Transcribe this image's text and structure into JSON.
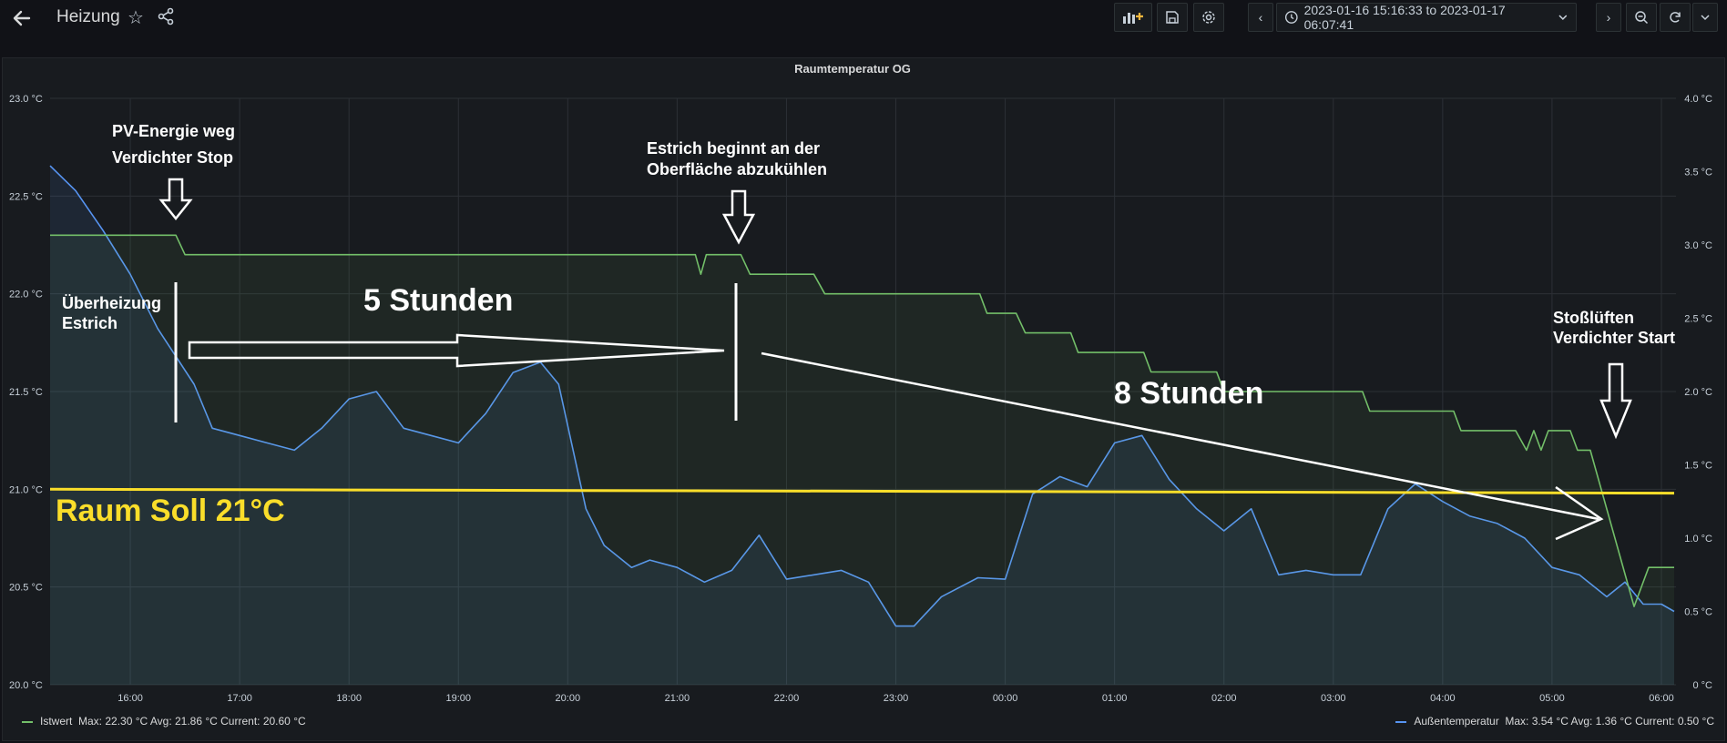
{
  "header": {
    "title": "Heizung",
    "time_range": "2023-01-16 15:16:33 to 2023-01-17 06:07:41"
  },
  "panel": {
    "title": "Raumtemperatur OG"
  },
  "colors": {
    "istwert": "#73bf69",
    "aussen": "#5794f2",
    "soll": "#fade2a",
    "annotation": "#ffffff",
    "background": "#181b1f"
  },
  "legend": {
    "left": {
      "name": "Istwert",
      "stats": "Max: 22.30 °C   Avg: 21.86 °C   Current: 20.60 °C"
    },
    "right": {
      "name": "Außentemperatur",
      "stats": "Max: 3.54 °C   Avg: 1.36 °C   Current: 0.50 °C"
    }
  },
  "annotations": {
    "pv_line1": "PV-Energie weg",
    "pv_line2": "Verdichter Stop",
    "estrich_line1": "Estrich beginnt an der",
    "estrich_line2": "Oberfläche abzukühlen",
    "ueber_line1": "Überheizung",
    "ueber_line2": "Estrich",
    "five_hours": "5 Stunden",
    "eight_hours": "8 Stunden",
    "stoss_line1": "Stoßlüften",
    "stoss_line2": "Verdichter Start",
    "soll": "Raum Soll 21°C"
  },
  "chart_data": {
    "type": "line",
    "title": "Raumtemperatur OG",
    "x_ticks": [
      "16:00",
      "17:00",
      "18:00",
      "19:00",
      "20:00",
      "21:00",
      "22:00",
      "23:00",
      "00:00",
      "01:00",
      "02:00",
      "03:00",
      "04:00",
      "05:00",
      "06:00"
    ],
    "x_range": [
      "15:16",
      "06:08"
    ],
    "y_left": {
      "label": "",
      "unit": "°C",
      "range": [
        20.0,
        23.0
      ],
      "ticks": [
        "20.0 °C",
        "20.5 °C",
        "21.0 °C",
        "21.5 °C",
        "22.0 °C",
        "22.5 °C",
        "23.0 °C"
      ]
    },
    "y_right": {
      "label": "",
      "unit": "°C",
      "range": [
        0,
        4.0
      ],
      "ticks": [
        "0 °C",
        "0.5 °C",
        "1.0 °C",
        "1.5 °C",
        "2.0 °C",
        "2.5 °C",
        "3.0 °C",
        "3.5 °C",
        "4.0 °C"
      ]
    },
    "grid": true,
    "legend_position": "bottom",
    "series": [
      {
        "name": "Istwert",
        "axis": "left",
        "values": [
          [
            "15:16",
            22.3
          ],
          [
            "16:25",
            22.3
          ],
          [
            "16:30",
            22.2
          ],
          [
            "21:10",
            22.2
          ],
          [
            "21:13",
            22.1
          ],
          [
            "21:16",
            22.2
          ],
          [
            "21:35",
            22.2
          ],
          [
            "21:40",
            22.1
          ],
          [
            "22:15",
            22.1
          ],
          [
            "22:21",
            22.0
          ],
          [
            "23:46",
            22.0
          ],
          [
            "23:50",
            21.9
          ],
          [
            "00:06",
            21.9
          ],
          [
            "00:11",
            21.8
          ],
          [
            "00:36",
            21.8
          ],
          [
            "00:40",
            21.7
          ],
          [
            "01:16",
            21.7
          ],
          [
            "01:20",
            21.6
          ],
          [
            "01:56",
            21.6
          ],
          [
            "02:00",
            21.5
          ],
          [
            "03:16",
            21.5
          ],
          [
            "03:20",
            21.4
          ],
          [
            "04:06",
            21.4
          ],
          [
            "04:10",
            21.3
          ],
          [
            "04:40",
            21.3
          ],
          [
            "04:46",
            21.2
          ],
          [
            "04:50",
            21.3
          ],
          [
            "04:54",
            21.2
          ],
          [
            "04:58",
            21.3
          ],
          [
            "05:10",
            21.3
          ],
          [
            "05:14",
            21.2
          ],
          [
            "05:21",
            21.2
          ],
          [
            "05:45",
            20.4
          ],
          [
            "05:53",
            20.6
          ],
          [
            "06:07",
            20.6
          ]
        ]
      },
      {
        "name": "Außentemperatur",
        "axis": "right",
        "values": [
          [
            "15:16",
            3.54
          ],
          [
            "15:30",
            3.37
          ],
          [
            "15:45",
            3.1
          ],
          [
            "16:00",
            2.8
          ],
          [
            "16:15",
            2.43
          ],
          [
            "16:35",
            2.05
          ],
          [
            "16:45",
            1.75
          ],
          [
            "17:00",
            1.7
          ],
          [
            "17:15",
            1.65
          ],
          [
            "17:30",
            1.6
          ],
          [
            "17:45",
            1.75
          ],
          [
            "18:00",
            1.95
          ],
          [
            "18:15",
            2.0
          ],
          [
            "18:30",
            1.75
          ],
          [
            "18:45",
            1.7
          ],
          [
            "19:00",
            1.65
          ],
          [
            "19:15",
            1.85
          ],
          [
            "19:30",
            2.13
          ],
          [
            "19:45",
            2.2
          ],
          [
            "19:55",
            2.05
          ],
          [
            "20:10",
            1.2
          ],
          [
            "20:20",
            0.95
          ],
          [
            "20:35",
            0.8
          ],
          [
            "20:45",
            0.85
          ],
          [
            "21:00",
            0.8
          ],
          [
            "21:15",
            0.7
          ],
          [
            "21:30",
            0.78
          ],
          [
            "21:45",
            1.02
          ],
          [
            "22:00",
            0.72
          ],
          [
            "22:15",
            0.75
          ],
          [
            "22:30",
            0.78
          ],
          [
            "22:45",
            0.7
          ],
          [
            "23:00",
            0.4
          ],
          [
            "23:10",
            0.4
          ],
          [
            "23:25",
            0.6
          ],
          [
            "23:45",
            0.73
          ],
          [
            "24:00",
            0.72
          ],
          [
            "24:15",
            1.3
          ],
          [
            "24:30",
            1.42
          ],
          [
            "24:45",
            1.35
          ],
          [
            "25:00",
            1.65
          ],
          [
            "25:15",
            1.7
          ],
          [
            "25:30",
            1.4
          ],
          [
            "25:45",
            1.2
          ],
          [
            "26:00",
            1.05
          ],
          [
            "26:15",
            1.2
          ],
          [
            "26:30",
            0.75
          ],
          [
            "26:45",
            0.78
          ],
          [
            "27:00",
            0.75
          ],
          [
            "27:15",
            0.75
          ],
          [
            "27:30",
            1.2
          ],
          [
            "27:45",
            1.37
          ],
          [
            "28:00",
            1.25
          ],
          [
            "28:15",
            1.15
          ],
          [
            "28:30",
            1.1
          ],
          [
            "28:45",
            1.0
          ],
          [
            "29:00",
            0.8
          ],
          [
            "29:15",
            0.75
          ],
          [
            "29:30",
            0.6
          ],
          [
            "29:40",
            0.7
          ],
          [
            "29:50",
            0.55
          ],
          [
            "30:00",
            0.55
          ],
          [
            "30:07",
            0.5
          ]
        ]
      },
      {
        "name": "",
        "axis": "left",
        "values": [
          [
            "15:16",
            21.0
          ],
          [
            "30:07",
            20.98
          ]
        ]
      }
    ]
  }
}
